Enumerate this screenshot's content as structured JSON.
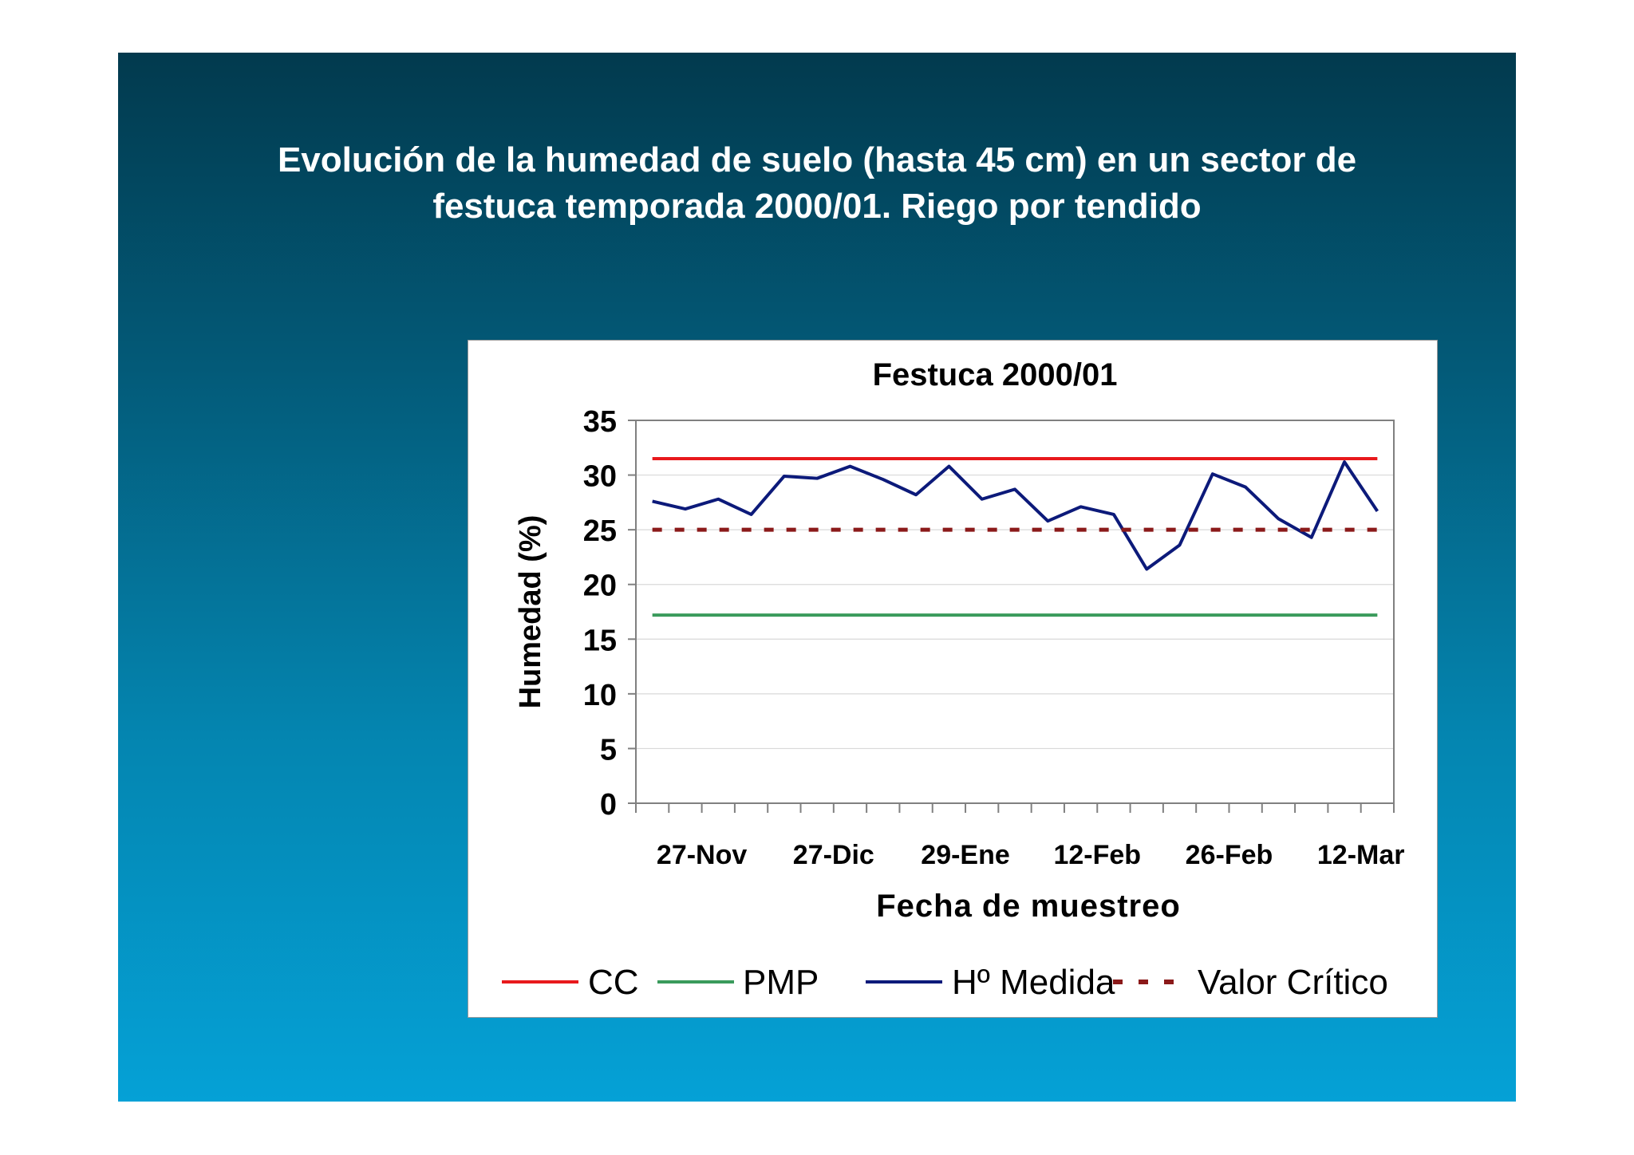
{
  "slide": {
    "title_line1": "Evolución de la humedad de suelo (hasta 45 cm) en un sector de",
    "title_line2": "festuca  temporada 2000/01. Riego por tendido"
  },
  "colors": {
    "cc": "#e8191c",
    "pmp": "#3a9b5c",
    "medida": "#0c1a7a",
    "critico": "#8b1a1a",
    "grid": "#d9d9d9",
    "axis": "#808080"
  },
  "chart_data": {
    "type": "line",
    "title": "Festuca 2000/01",
    "xlabel": "Fecha de muestreo",
    "ylabel": "Humedad (%)",
    "ylim": [
      0,
      35
    ],
    "yticks": [
      "0",
      "5",
      "10",
      "15",
      "20",
      "25",
      "30",
      "35"
    ],
    "grid": true,
    "legend_position": "bottom",
    "x_tick_labels": [
      "27-Nov",
      "27-Dic",
      "29-Ene",
      "12-Feb",
      "26-Feb",
      "12-Mar"
    ],
    "x_tick_label_indices": [
      1.5,
      5.5,
      9.5,
      13.5,
      17.5,
      21.5
    ],
    "series": [
      {
        "name": "CC",
        "style": "solid",
        "values": [
          31.5,
          31.5,
          31.5,
          31.5,
          31.5,
          31.5,
          31.5,
          31.5,
          31.5,
          31.5,
          31.5,
          31.5,
          31.5,
          31.5,
          31.5,
          31.5,
          31.5,
          31.5,
          31.5,
          31.5,
          31.5,
          31.5,
          31.5
        ]
      },
      {
        "name": "PMP",
        "style": "solid",
        "values": [
          17.2,
          17.2,
          17.2,
          17.2,
          17.2,
          17.2,
          17.2,
          17.2,
          17.2,
          17.2,
          17.2,
          17.2,
          17.2,
          17.2,
          17.2,
          17.2,
          17.2,
          17.2,
          17.2,
          17.2,
          17.2,
          17.2,
          17.2
        ]
      },
      {
        "name": "Hº Medida",
        "style": "solid",
        "values": [
          27.6,
          26.9,
          27.8,
          26.4,
          29.9,
          29.7,
          30.8,
          29.6,
          28.2,
          30.8,
          27.8,
          28.7,
          25.8,
          27.1,
          26.4,
          21.4,
          23.6,
          30.1,
          28.9,
          26.0,
          24.3,
          31.2,
          26.7
        ]
      },
      {
        "name": "Valor Crítico",
        "style": "dashed",
        "values": [
          25,
          25,
          25,
          25,
          25,
          25,
          25,
          25,
          25,
          25,
          25,
          25,
          25,
          25,
          25,
          25,
          25,
          25,
          25,
          25,
          25,
          25,
          25
        ]
      }
    ]
  }
}
